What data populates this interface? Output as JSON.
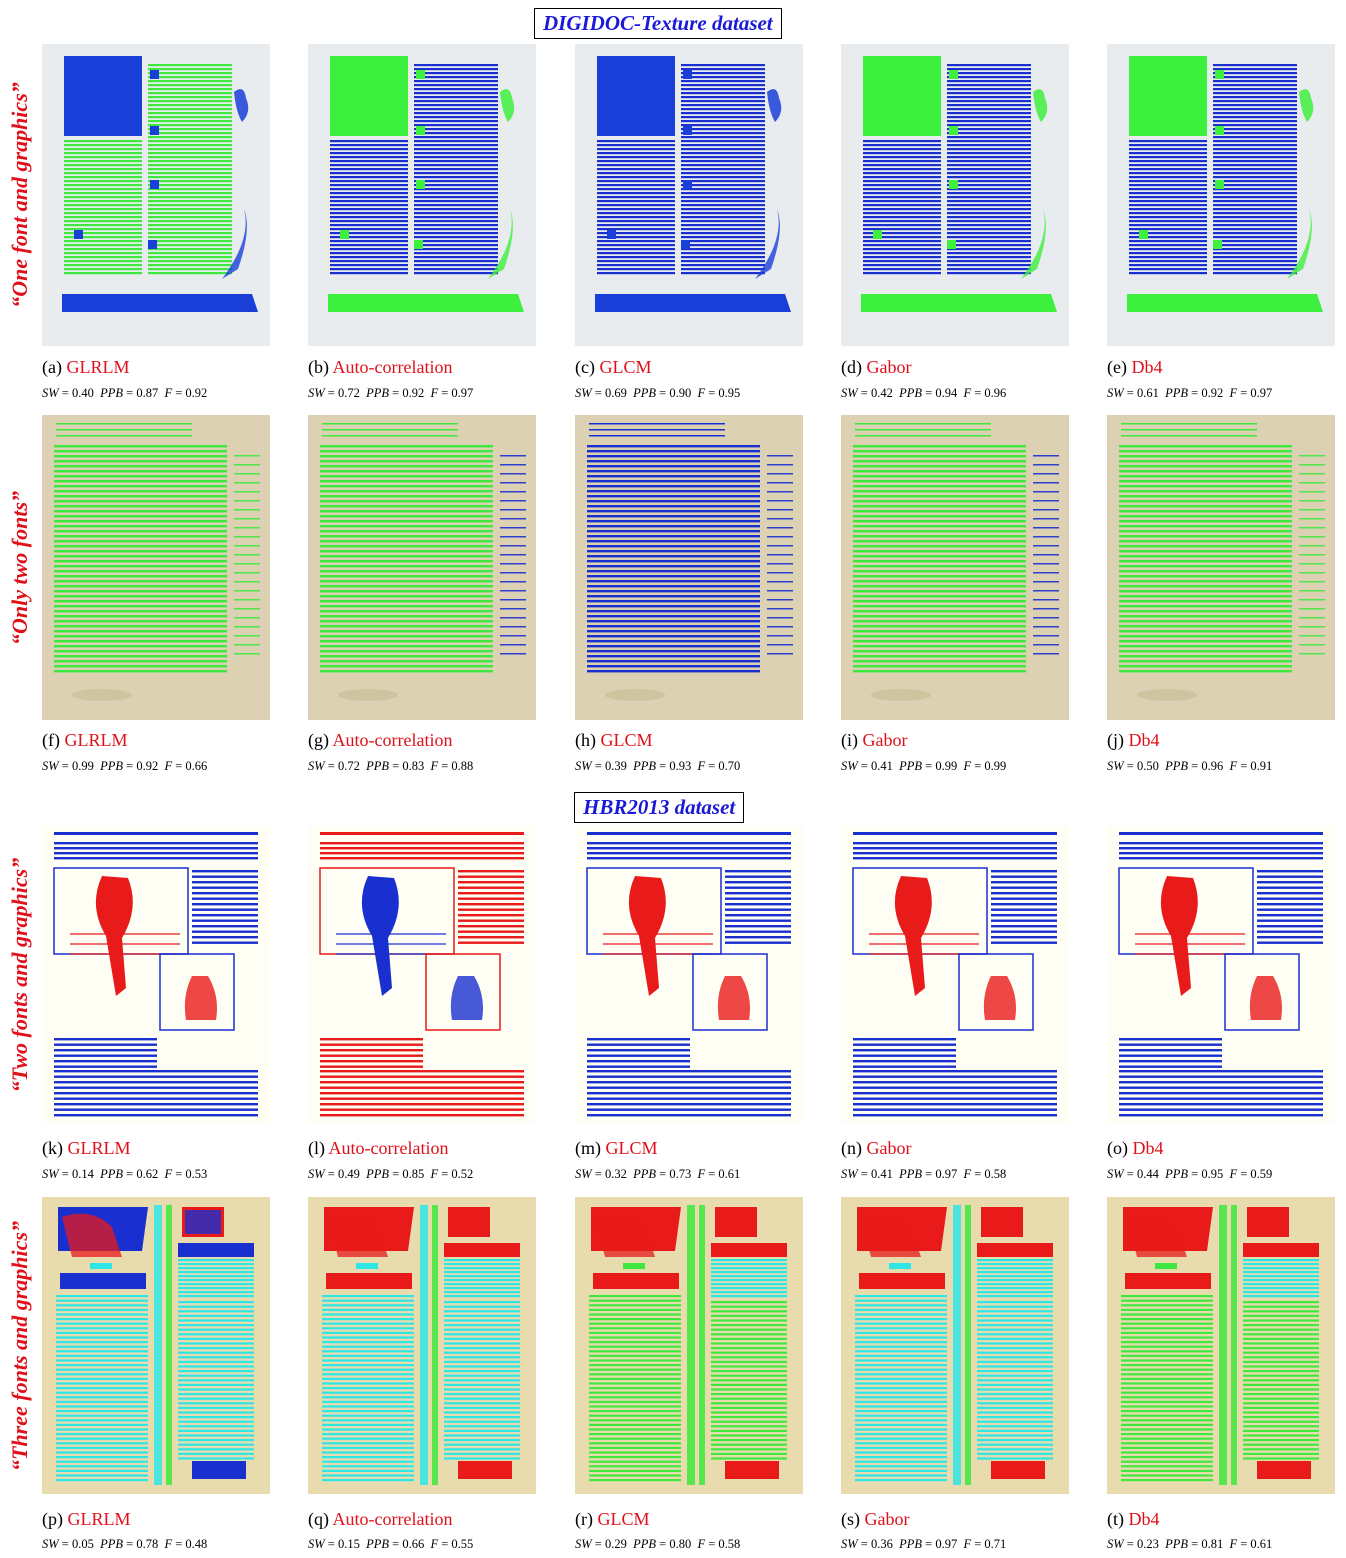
{
  "datasets": [
    {
      "title": "DIGIDOC-Texture dataset"
    },
    {
      "title": "HBR2013 dataset"
    }
  ],
  "rows": [
    {
      "label": "“One font and graphics”",
      "style": "digi-one",
      "panels": [
        {
          "letter": "(a)",
          "method": "GLRLM",
          "sw": "0.40",
          "ppb": "0.87",
          "f": "0.92",
          "bg": "#e9ecef",
          "text_color": "#3ee83e",
          "block_color": "#1a3fd9"
        },
        {
          "letter": "(b)",
          "method": "Auto-correlation",
          "sw": "0.72",
          "ppb": "0.92",
          "f": "0.97",
          "bg": "#e9ecef",
          "text_color": "#1a2fd0",
          "block_color": "#3ef03e"
        },
        {
          "letter": "(c)",
          "method": "GLCM",
          "sw": "0.69",
          "ppb": "0.90",
          "f": "0.95",
          "bg": "#e9ecef",
          "text_color": "#1a2fd0",
          "block_color": "#1a3fd9"
        },
        {
          "letter": "(d)",
          "method": "Gabor",
          "sw": "0.42",
          "ppb": "0.94",
          "f": "0.96",
          "bg": "#e9ecef",
          "text_color": "#1a2fd0",
          "block_color": "#3ef03e"
        },
        {
          "letter": "(e)",
          "method": "Db4",
          "sw": "0.61",
          "ppb": "0.92",
          "f": "0.97",
          "bg": "#e9ecef",
          "text_color": "#1a2fd0",
          "block_color": "#3ef03e"
        }
      ]
    },
    {
      "label": "“Only two fonts”",
      "style": "digi-two",
      "panels": [
        {
          "letter": "(f)",
          "method": "GLRLM",
          "sw": "0.99",
          "ppb": "0.92",
          "f": "0.66",
          "bg": "#ddd1b3",
          "text_color": "#3ee83e",
          "block_color": "#3ee83e"
        },
        {
          "letter": "(g)",
          "method": "Auto-correlation",
          "sw": "0.72",
          "ppb": "0.83",
          "f": "0.88",
          "bg": "#ddd1b3",
          "text_color": "#3ee83e",
          "block_color": "#1a2fd0"
        },
        {
          "letter": "(h)",
          "method": "GLCM",
          "sw": "0.39",
          "ppb": "0.93",
          "f": "0.70",
          "bg": "#ddd1b3",
          "text_color": "#1a2fd0",
          "block_color": "#1a2fd0"
        },
        {
          "letter": "(i)",
          "method": "Gabor",
          "sw": "0.41",
          "ppb": "0.99",
          "f": "0.99",
          "bg": "#ddd1b3",
          "text_color": "#3ee83e",
          "block_color": "#1a2fd0"
        },
        {
          "letter": "(j)",
          "method": "Db4",
          "sw": "0.50",
          "ppb": "0.96",
          "f": "0.91",
          "bg": "#ddd1b3",
          "text_color": "#3ee83e",
          "block_color": "#3ee83e"
        }
      ]
    },
    {
      "label": "“Two fonts and graphics”",
      "style": "hbr-two",
      "panels": [
        {
          "letter": "(k)",
          "method": "GLRLM",
          "sw": "0.14",
          "ppb": "0.62",
          "f": "0.53",
          "bg": "#fffef4",
          "text_color": "#1a2fd0",
          "block_color": "#e81a1a"
        },
        {
          "letter": "(l)",
          "method": "Auto-correlation",
          "sw": "0.49",
          "ppb": "0.85",
          "f": "0.52",
          "bg": "#fffef4",
          "text_color": "#e81a1a",
          "block_color": "#1a2fd0"
        },
        {
          "letter": "(m)",
          "method": "GLCM",
          "sw": "0.32",
          "ppb": "0.73",
          "f": "0.61",
          "bg": "#fffef4",
          "text_color": "#1a2fd0",
          "block_color": "#e81a1a"
        },
        {
          "letter": "(n)",
          "method": "Gabor",
          "sw": "0.41",
          "ppb": "0.97",
          "f": "0.58",
          "bg": "#fffef4",
          "text_color": "#1a2fd0",
          "block_color": "#e81a1a"
        },
        {
          "letter": "(o)",
          "method": "Db4",
          "sw": "0.44",
          "ppb": "0.95",
          "f": "0.59",
          "bg": "#fffef4",
          "text_color": "#1a2fd0",
          "block_color": "#e81a1a"
        }
      ]
    },
    {
      "label": "“Three fonts and graphics”",
      "style": "hbr-three",
      "panels": [
        {
          "letter": "(p)",
          "method": "GLRLM",
          "sw": "0.05",
          "ppb": "0.78",
          "f": "0.48",
          "bg": "#e8dcaf",
          "text_color": "#2ee6e6",
          "block_color": "#1a2fd0"
        },
        {
          "letter": "(q)",
          "method": "Auto-correlation",
          "sw": "0.15",
          "ppb": "0.66",
          "f": "0.55",
          "bg": "#e8dcaf",
          "text_color": "#2ee6e6",
          "block_color": "#e81a1a"
        },
        {
          "letter": "(r)",
          "method": "GLCM",
          "sw": "0.29",
          "ppb": "0.80",
          "f": "0.58",
          "bg": "#e8dcaf",
          "text_color": "#3ee83e",
          "block_color": "#e81a1a"
        },
        {
          "letter": "(s)",
          "method": "Gabor",
          "sw": "0.36",
          "ppb": "0.97",
          "f": "0.71",
          "bg": "#e8dcaf",
          "text_color": "#2ee6e6",
          "block_color": "#e81a1a"
        },
        {
          "letter": "(t)",
          "method": "Db4",
          "sw": "0.23",
          "ppb": "0.81",
          "f": "0.61",
          "bg": "#e8dcaf",
          "text_color": "#3ee83e",
          "block_color": "#e81a1a"
        }
      ]
    }
  ],
  "labels": {
    "sw": "SW",
    "ppb": "PPB",
    "f": "F"
  }
}
